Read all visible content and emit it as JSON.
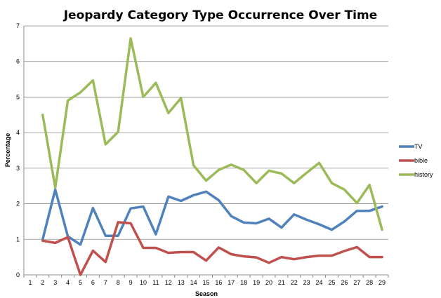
{
  "chart_data": {
    "type": "line",
    "title": "Jeopardy Category Type Occurrence Over Time",
    "xlabel": "Season",
    "ylabel": "Percentage",
    "x": [
      1,
      2,
      3,
      4,
      5,
      6,
      7,
      8,
      9,
      10,
      11,
      12,
      13,
      14,
      15,
      16,
      17,
      18,
      19,
      20,
      21,
      22,
      23,
      24,
      25,
      26,
      27,
      28,
      29
    ],
    "ylim": [
      0,
      7
    ],
    "yticks": [
      0,
      1,
      2,
      3,
      4,
      5,
      6,
      7
    ],
    "grid": true,
    "legend_position": "right",
    "series": [
      {
        "name": "TV",
        "color": "#4F81BD",
        "values": [
          null,
          1.0,
          2.4,
          1.08,
          0.85,
          1.88,
          1.1,
          1.1,
          1.87,
          1.92,
          1.14,
          2.2,
          2.08,
          2.24,
          2.34,
          2.1,
          1.65,
          1.47,
          1.45,
          1.58,
          1.33,
          1.7,
          1.55,
          1.42,
          1.27,
          1.5,
          1.8,
          1.8,
          1.92
        ]
      },
      {
        "name": "bible",
        "color": "#C0504D",
        "values": [
          null,
          0.96,
          0.9,
          1.06,
          0.0,
          0.68,
          0.36,
          1.48,
          1.45,
          0.76,
          0.76,
          0.62,
          0.64,
          0.64,
          0.4,
          0.77,
          0.58,
          0.52,
          0.49,
          0.34,
          0.5,
          0.44,
          0.5,
          0.54,
          0.54,
          0.67,
          0.78,
          0.5,
          0.5
        ]
      },
      {
        "name": "history",
        "color": "#9BBB59",
        "values": [
          null,
          4.5,
          2.45,
          4.9,
          5.13,
          5.47,
          3.67,
          4.02,
          6.65,
          5.0,
          5.4,
          4.55,
          4.97,
          3.08,
          2.65,
          2.95,
          3.1,
          2.95,
          2.58,
          2.93,
          2.85,
          2.58,
          2.87,
          3.15,
          2.58,
          2.4,
          2.02,
          2.53,
          1.27
        ]
      }
    ]
  }
}
